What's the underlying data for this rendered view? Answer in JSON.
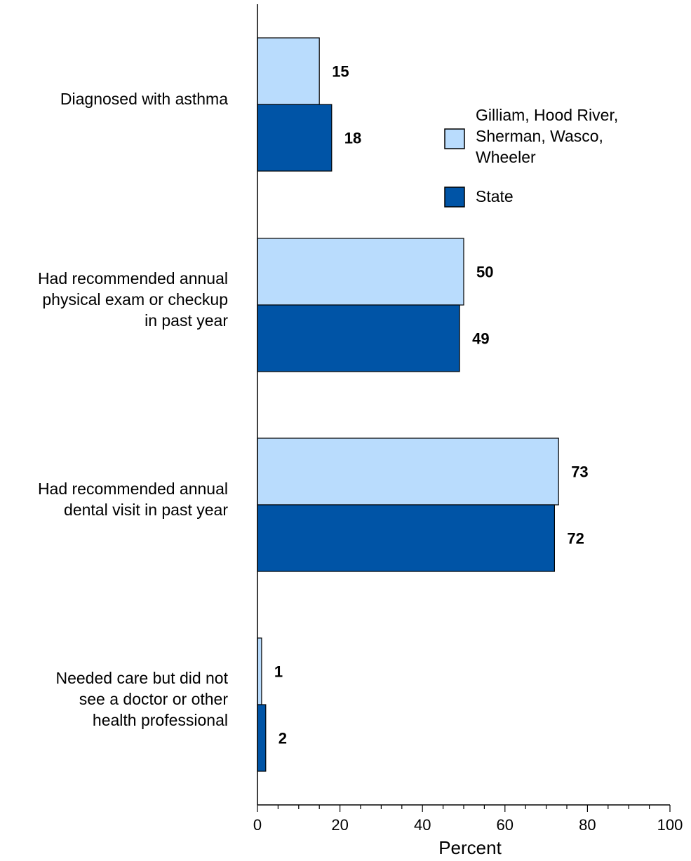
{
  "chart_data": {
    "type": "bar",
    "orientation": "horizontal",
    "categories": [
      [
        "Diagnosed with asthma"
      ],
      [
        "Had recommended annual",
        "physical exam or checkup",
        "in past year"
      ],
      [
        "Had recommended annual",
        "dental visit in past year"
      ],
      [
        "Needed care but did not",
        "see a doctor or other",
        "health professional"
      ]
    ],
    "series": [
      {
        "name": [
          "Gilliam, Hood River,",
          "Sherman, Wasco,",
          "Wheeler"
        ],
        "values": [
          15,
          50,
          73,
          1
        ],
        "color": "#b9dcfd"
      },
      {
        "name": [
          "State"
        ],
        "values": [
          18,
          49,
          72,
          2
        ],
        "color": "#0054a6"
      }
    ],
    "xlabel": "Percent",
    "xlim": [
      0,
      100
    ],
    "xticks": [
      0,
      20,
      40,
      60,
      80,
      100
    ],
    "grid": false,
    "legend_position": "top-right"
  }
}
